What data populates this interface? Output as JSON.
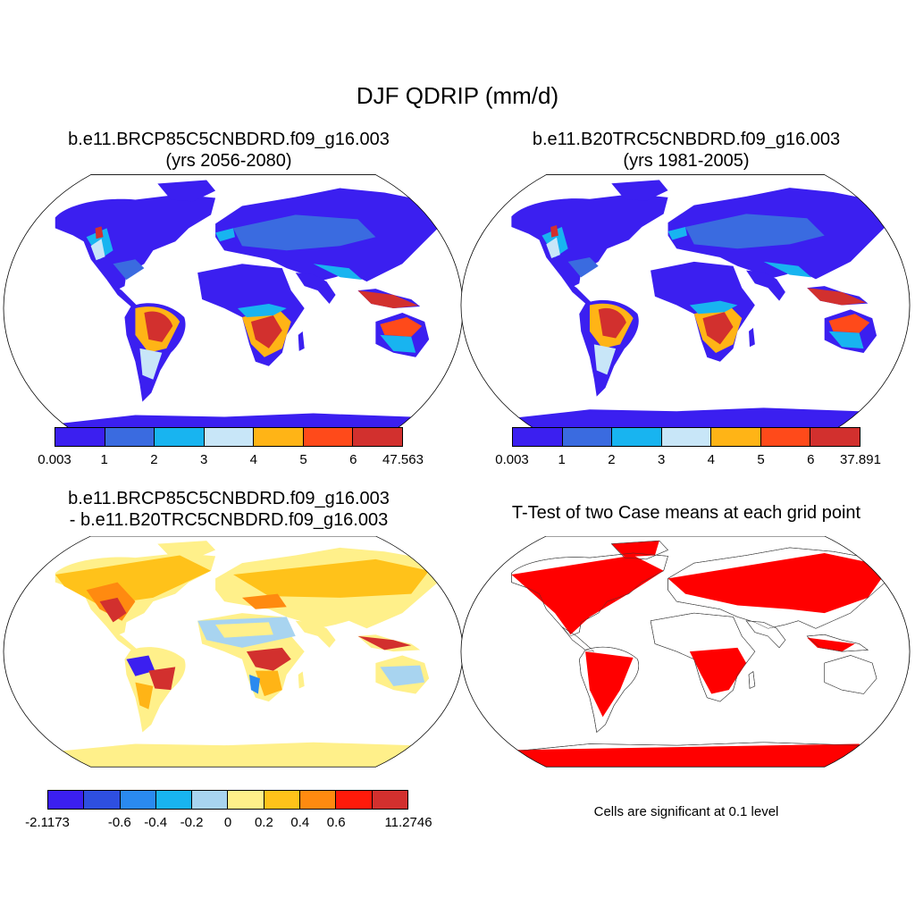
{
  "title": "DJF QDRIP (mm/d)",
  "panels": {
    "top_left": {
      "line1": "b.e11.BRCP85C5CNBDRD.f09_g16.003",
      "line2": "(yrs 2056-2080)",
      "colorbar": {
        "colors": [
          "#3b1ff0",
          "#3a6be0",
          "#18b4f0",
          "#c8e6f8",
          "#ffb416",
          "#ff4a1a",
          "#d2302e"
        ],
        "labels": [
          "0.003",
          "1",
          "2",
          "3",
          "4",
          "5",
          "6",
          "47.563"
        ]
      }
    },
    "top_right": {
      "line1": "b.e11.B20TRC5CNBDRD.f09_g16.003",
      "line2": "(yrs 1981-2005)",
      "colorbar": {
        "colors": [
          "#3b1ff0",
          "#3a6be0",
          "#18b4f0",
          "#c8e6f8",
          "#ffb416",
          "#ff4a1a",
          "#d2302e"
        ],
        "labels": [
          "0.003",
          "1",
          "2",
          "3",
          "4",
          "5",
          "6",
          "37.891"
        ]
      }
    },
    "bottom_left": {
      "line1": "b.e11.BRCP85C5CNBDRD.f09_g16.003",
      "line2": "- b.e11.B20TRC5CNBDRD.f09_g16.003",
      "colorbar": {
        "colors": [
          "#3b1ff0",
          "#2e4fe0",
          "#2a8af0",
          "#18b4f0",
          "#a8d4f0",
          "#fff08a",
          "#ffc21a",
          "#ff8a10",
          "#ff1a0a",
          "#d2302e"
        ],
        "labels": [
          "-2.1173",
          "-0.6",
          "-0.4",
          "-0.2",
          "0",
          "0.2",
          "0.4",
          "0.6",
          "11.2746"
        ],
        "label_slots": [
          0,
          2,
          3,
          4,
          5,
          6,
          7,
          8,
          10
        ]
      }
    },
    "bottom_right": {
      "line1": "T-Test of two Case means at each grid point",
      "note": "Cells are significant at 0.1 level"
    }
  },
  "colors": {
    "land_blue": "#3b1ff0",
    "sig_red": "#ff0000"
  }
}
